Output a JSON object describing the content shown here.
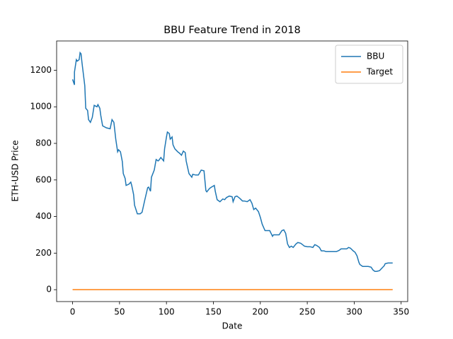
{
  "chart_data": {
    "type": "line",
    "title": "BBU Feature Trend in 2018",
    "x_label": "Date",
    "y_label": "ETH-USD Price",
    "xlim": [
      -17,
      357
    ],
    "ylim": [
      -65,
      1360
    ],
    "xticks": [
      0,
      50,
      100,
      150,
      200,
      250,
      300,
      350
    ],
    "yticks": [
      0,
      200,
      400,
      600,
      800,
      1000,
      1200
    ],
    "legend": "upper right",
    "series": [
      {
        "name": "BBU",
        "color": "#1f77b4",
        "x": [
          0,
          2,
          2,
          4,
          5,
          7,
          8,
          9,
          10,
          11,
          13,
          14,
          16,
          17,
          19,
          21,
          23,
          26,
          27,
          29,
          30,
          32,
          36,
          40,
          42,
          44,
          46,
          48,
          49,
          51,
          53,
          54,
          56,
          57,
          60,
          62,
          63,
          65,
          66,
          69,
          72,
          74,
          77,
          80,
          81,
          83,
          84,
          87,
          89,
          91,
          92,
          94,
          97,
          98,
          100,
          101,
          103,
          104,
          106,
          107,
          109,
          112,
          114,
          116,
          118,
          120,
          121,
          124,
          127,
          128,
          131,
          134,
          137,
          140,
          142,
          143,
          146,
          148,
          151,
          152,
          154,
          157,
          160,
          162,
          164,
          167,
          170,
          171,
          173,
          175,
          178,
          181,
          183,
          186,
          189,
          191,
          193,
          195,
          198,
          200,
          202,
          205,
          208,
          210,
          213,
          214,
          217,
          220,
          223,
          225,
          227,
          229,
          231,
          233,
          235,
          238,
          240,
          243,
          245,
          247,
          250,
          253,
          256,
          258,
          260,
          263,
          265,
          268,
          270,
          273,
          276,
          279,
          281,
          284,
          286,
          289,
          292,
          294,
          296,
          299,
          301,
          303,
          305,
          306,
          309,
          312,
          315,
          318,
          320,
          322,
          324,
          327,
          329,
          332,
          333,
          336,
          339,
          341
        ],
        "values": [
          1150,
          1120,
          1190,
          1258,
          1250,
          1258,
          1296,
          1290,
          1242,
          1200,
          1115,
          992,
          980,
          930,
          915,
          942,
          1008,
          1000,
          1012,
          992,
          954,
          896,
          885,
          880,
          930,
          915,
          823,
          754,
          765,
          754,
          700,
          635,
          608,
          570,
          577,
          588,
          570,
          520,
          462,
          415,
          415,
          423,
          492,
          558,
          561,
          538,
          615,
          654,
          712,
          704,
          708,
          723,
          704,
          770,
          835,
          862,
          854,
          823,
          835,
          792,
          770,
          754,
          746,
          735,
          758,
          750,
          704,
          635,
          615,
          631,
          627,
          627,
          654,
          650,
          542,
          535,
          554,
          561,
          570,
          538,
          492,
          481,
          496,
          492,
          504,
          512,
          508,
          481,
          508,
          512,
          500,
          485,
          485,
          481,
          492,
          473,
          438,
          446,
          427,
          396,
          358,
          323,
          323,
          323,
          292,
          300,
          300,
          300,
          323,
          327,
          308,
          250,
          231,
          238,
          231,
          250,
          258,
          254,
          246,
          238,
          235,
          235,
          231,
          246,
          242,
          231,
          212,
          212,
          208,
          208,
          208,
          208,
          208,
          215,
          223,
          223,
          223,
          231,
          227,
          212,
          204,
          185,
          150,
          138,
          127,
          127,
          127,
          123,
          108,
          100,
          100,
          104,
          115,
          131,
          142,
          146,
          146,
          146
        ]
      },
      {
        "name": "Target",
        "color": "#ff7f0e",
        "x": [
          0,
          341
        ],
        "values": [
          0,
          0
        ]
      }
    ]
  }
}
